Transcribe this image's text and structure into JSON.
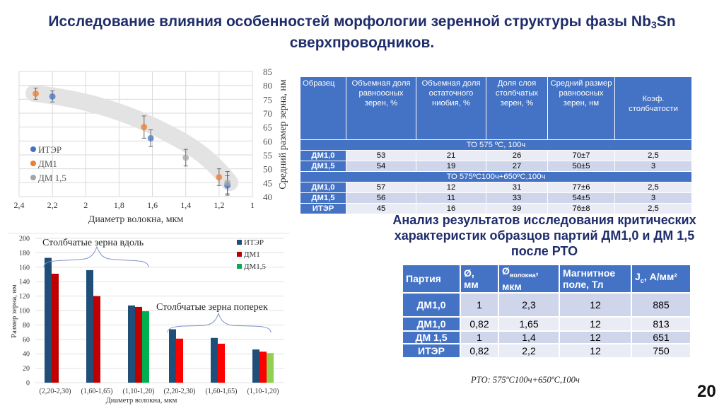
{
  "title": {
    "line1_before_sub": "Исследование влияния особенностей морфологии зеренной структуры фазы Nb",
    "line1_sub": "3",
    "line1_after_sub": "Sn",
    "line2": "сверхпроводников."
  },
  "chart_data": [
    {
      "type": "scatter",
      "title": "",
      "xlabel": "Диаметр волокна, мкм",
      "ylabel": "Средний размер зерна, нм",
      "xlim": [
        2.4,
        1.0
      ],
      "ylim": [
        40,
        85
      ],
      "x_reversed": true,
      "x_ticks": [
        "2,4",
        "2,2",
        "2",
        "1,8",
        "1,6",
        "1,4",
        "1,2",
        "1"
      ],
      "y_ticks": [
        "40",
        "45",
        "50",
        "55",
        "60",
        "65",
        "70",
        "75",
        "80",
        "85"
      ],
      "y_axis_position": "right",
      "grid": true,
      "legend_position": "left-inside",
      "legend": [
        "ИТЭР",
        "ДМ1",
        "ДМ 1,5"
      ],
      "series": [
        {
          "name": "ИТЭР",
          "color": "#4472c4",
          "points": [
            {
              "x": 2.2,
              "y": 76,
              "err": 2
            },
            {
              "x": 1.61,
              "y": 61,
              "err": 3
            },
            {
              "x": 1.15,
              "y": 44,
              "err": 3.5
            }
          ]
        },
        {
          "name": "ДМ1",
          "color": "#ed7d31",
          "points": [
            {
              "x": 2.3,
              "y": 77,
              "err": 2
            },
            {
              "x": 1.65,
              "y": 65,
              "err": 4
            },
            {
              "x": 1.2,
              "y": 47,
              "err": 3
            }
          ]
        },
        {
          "name": "ДМ 1,5",
          "color": "#a5a5a5",
          "points": [
            {
              "x": 1.4,
              "y": 54,
              "err": 3
            },
            {
              "x": 1.15,
              "y": 45,
              "err": 4
            }
          ]
        }
      ],
      "annotations": [
        "grey trend band"
      ]
    },
    {
      "type": "bar",
      "title": "",
      "xlabel": "Диаметр волокна, мкм",
      "ylabel": "Размер зерна, нм",
      "ylim": [
        0,
        200
      ],
      "y_ticks": [
        "0",
        "20",
        "40",
        "60",
        "80",
        "100",
        "120",
        "140",
        "160",
        "180",
        "200"
      ],
      "grid": true,
      "legend_position": "top-right",
      "categories": [
        "(2,20-2,30)",
        "(1,60-1,65)",
        "(1,10-1,20)",
        "(2,20-2,30)",
        "(1,60-1,65)",
        "(1,10-1,20)"
      ],
      "series": [
        {
          "name": "ИТЭР",
          "color": "#1f4e79",
          "values": [
            173,
            156,
            107,
            74,
            62,
            46
          ]
        },
        {
          "name": "ДМ1",
          "color": "#c00000",
          "values": [
            151,
            120,
            105,
            61,
            54,
            43
          ]
        },
        {
          "name": "ДМ1,5",
          "color": "#00b050",
          "values": [
            null,
            null,
            99,
            null,
            null,
            41
          ]
        }
      ],
      "annotations": [
        "Столбчатые зерна вдоль",
        "Столбчатые зерна поперек"
      ]
    }
  ],
  "table1": {
    "headers": [
      "Образец",
      "Объемная доля равноосных зерен, %",
      "Объемная доля остаточного ниобия, %",
      "Доля слоя столбчатых зерен, %",
      "Средний размер равноосных зерен, нм",
      "Коэф. столбчатости"
    ],
    "groups": [
      {
        "label": "ТО 575 ºС, 100ч",
        "rows": [
          [
            "ДМ1,0",
            "53",
            "21",
            "26",
            "70±7",
            "2,5"
          ],
          [
            "ДМ1,5",
            "54",
            "19",
            "27",
            "50±5",
            "3"
          ]
        ]
      },
      {
        "label": "ТО 575ºС100ч+650ºС,100ч",
        "rows": [
          [
            "ДМ1,0",
            "57",
            "12",
            "31",
            "77±6",
            "2,5"
          ],
          [
            "ДМ1,5",
            "56",
            "11",
            "33",
            "54±5",
            "3"
          ],
          [
            "ИТЭР",
            "45",
            "16",
            "39",
            "76±8",
            "2,5"
          ]
        ]
      }
    ]
  },
  "subtitle": "Анализ результатов исследования критических характеристик образцов партий ДМ1,0 и ДМ 1,5 после РТО",
  "table2": {
    "headers": {
      "party": "Партия",
      "d_mm_1": "Ø,",
      "d_mm_2": "мм",
      "d_fiber_1": "Ø",
      "d_fiber_sub": "волокна",
      "d_fiber_2": ",",
      "d_fiber_3": "мкм",
      "field_1": "Магнитное",
      "field_2": "поле, Тл",
      "jc_1": "J",
      "jc_sub": "c",
      "jc_2": ", А/мм²"
    },
    "rows": [
      [
        "ДМ1,0",
        "1",
        "2,3",
        "12",
        "885"
      ],
      [
        "ДМ1,0",
        "0,82",
        "1,65",
        "12",
        "813"
      ],
      [
        "ДМ 1,5",
        "1",
        "1,4",
        "12",
        "651"
      ],
      [
        "ИТЭР",
        "0,82",
        "2,2",
        "12",
        "750"
      ]
    ]
  },
  "footnote": "РТО: 575ºС100ч+650ºС,100ч",
  "page_number": "20"
}
